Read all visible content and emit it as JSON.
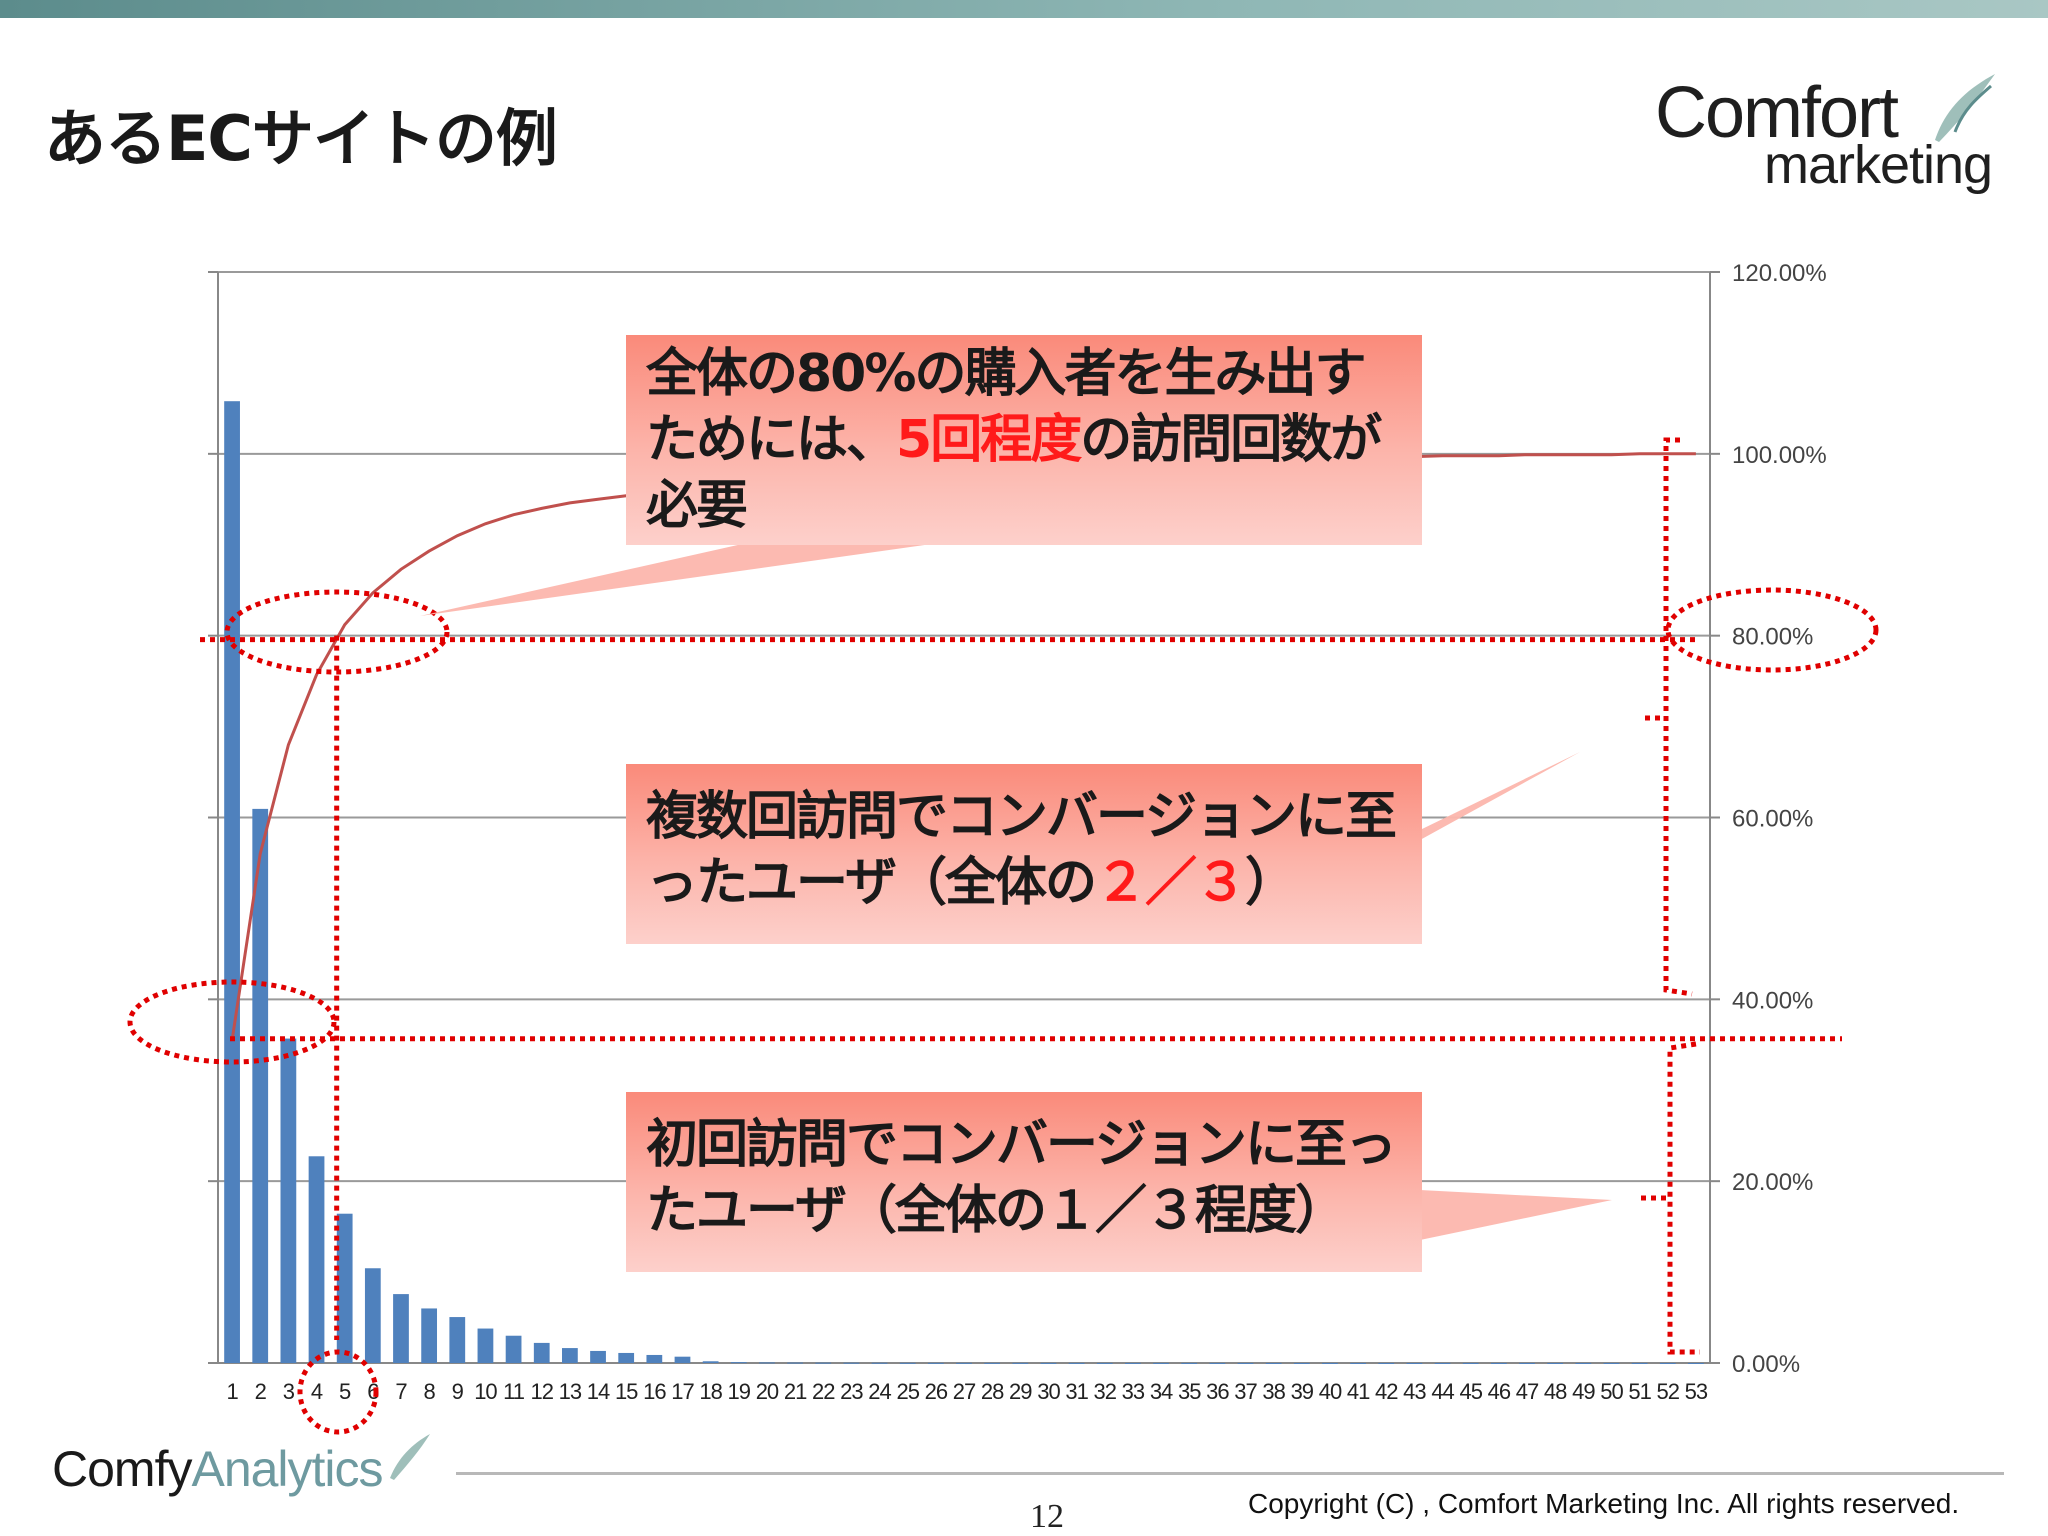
{
  "slide": {
    "title": "あるECサイトの例",
    "page_number": "12",
    "copyright": "Copyright (C) , Comfort Marketing Inc. All rights reserved.",
    "logo_top": "Comfort",
    "logo_bottom": "marketing",
    "bottom_logo_a": "Comfy",
    "bottom_logo_b": "Analytics"
  },
  "callouts": {
    "c1": {
      "pre": "全体の80%の購入者を生み出すためには、",
      "highlight": "5回程度",
      "post": "の訪問回数が必要"
    },
    "c2": {
      "pre": "複数回訪問でコンバージョンに至ったユーザ（全体の",
      "highlight": "２／３",
      "post": "）"
    },
    "c3": {
      "text": "初回訪問でコンバージョンに至ったユーザ（全体の１／３程度）"
    }
  },
  "colors": {
    "bar": "#4f81bd",
    "line": "#c0504d",
    "annotation": "#e00000"
  },
  "chart_data": {
    "type": "bar",
    "x_tick_labels": [
      "1",
      "2",
      "3",
      "4",
      "5",
      "6",
      "7",
      "8",
      "9",
      "10",
      "11",
      "12",
      "13",
      "14",
      "15",
      "16",
      "17",
      "18",
      "19",
      "20",
      "21",
      "22",
      "23",
      "24",
      "25",
      "26",
      "27",
      "28",
      "29",
      "30",
      "31",
      "32",
      "33",
      "34",
      "35",
      "36",
      "37",
      "38",
      "39",
      "40",
      "41",
      "42",
      "43",
      "44",
      "45",
      "46",
      "47",
      "48",
      "49",
      "50",
      "51",
      "52",
      "53"
    ],
    "series": [
      {
        "values": [
          33500,
          19300,
          11300,
          7200,
          5200,
          3300,
          2400,
          1900,
          1600,
          1200,
          950,
          700,
          520,
          420,
          350,
          280,
          220,
          60,
          30,
          20,
          15,
          12,
          10,
          8,
          6,
          5,
          5,
          4,
          4,
          3,
          3,
          3,
          2,
          2,
          2,
          2,
          2,
          1,
          1,
          1,
          1,
          1,
          1,
          1,
          1,
          1,
          1,
          1,
          1,
          1,
          1,
          1,
          1
        ]
      },
      {
        "axis": "right",
        "values": [
          0.355,
          0.56,
          0.68,
          0.757,
          0.812,
          0.847,
          0.873,
          0.893,
          0.91,
          0.923,
          0.933,
          0.94,
          0.946,
          0.95,
          0.954,
          0.957,
          0.959,
          0.962,
          0.964,
          0.966,
          0.968,
          0.97,
          0.972,
          0.974,
          0.976,
          0.978,
          0.98,
          0.982,
          0.984,
          0.986,
          0.987,
          0.988,
          0.989,
          0.99,
          0.991,
          0.992,
          0.993,
          0.994,
          0.995,
          0.996,
          0.996,
          0.997,
          0.997,
          0.998,
          0.998,
          0.998,
          0.999,
          0.999,
          0.999,
          0.999,
          1.0,
          1.0,
          1.0
        ]
      }
    ],
    "y2_ticks": [
      "0.00%",
      "20.00%",
      "40.00%",
      "60.00%",
      "80.00%",
      "100.00%",
      "120.00%"
    ],
    "y2lim": [
      0,
      1.2
    ],
    "gridlines": true,
    "reference_lines": [
      0.8,
      0.36
    ],
    "markers": [
      "5"
    ]
  }
}
